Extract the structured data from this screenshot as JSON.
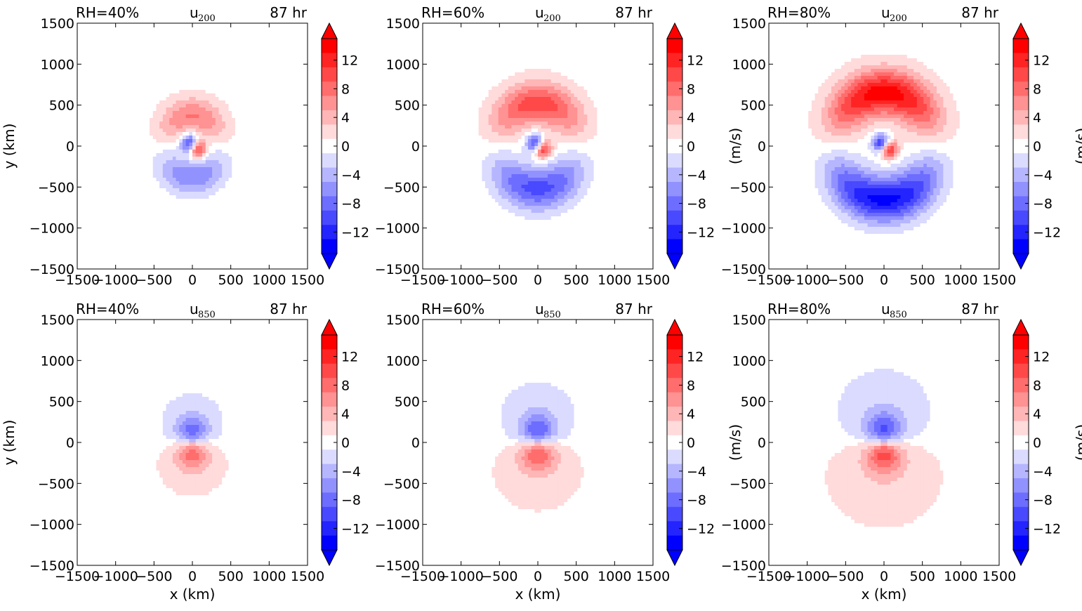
{
  "chart_data": [
    {
      "type": "heatmap",
      "panel": "u200-rh40",
      "title_left": "RH=40%",
      "title_center": "u",
      "title_center_sub": "200",
      "title_right": "87 hr",
      "xlabel": "",
      "ylabel": "y (km)",
      "colorbar_label": "",
      "xlim": [
        -1500,
        1500
      ],
      "ylim": [
        -1500,
        1500
      ],
      "xticks": [
        "−1500",
        "−1000",
        "−500",
        "0",
        "500",
        "1000",
        "1500"
      ],
      "yticks": [
        "1500",
        "1000",
        "500",
        "0",
        "−500",
        "−1000",
        "−1500"
      ],
      "field": {
        "kind": "upper",
        "background": 0.5,
        "ring_amp": 7,
        "ring_radius": 370,
        "ring_width": 220,
        "ring_extent": 720,
        "core_amp": 15,
        "core_radius": 110,
        "core_offset": 75,
        "core_width": 80
      }
    },
    {
      "type": "heatmap",
      "panel": "u200-rh60",
      "title_left": "RH=60%",
      "title_center": "u",
      "title_center_sub": "200",
      "title_right": "87 hr",
      "xlabel": "",
      "ylabel": "",
      "colorbar_label": "(m/s)",
      "xlim": [
        -1500,
        1500
      ],
      "ylim": [
        -1500,
        1500
      ],
      "xticks": [
        "−1500",
        "−1000",
        "−500",
        "0",
        "500",
        "1000",
        "1500"
      ],
      "yticks": [
        "1500",
        "1000",
        "500",
        "0",
        "−500",
        "−1000",
        "−1500"
      ],
      "field": {
        "kind": "upper",
        "background": 0.6,
        "ring_amp": 10,
        "ring_radius": 520,
        "ring_width": 260,
        "ring_extent": 850,
        "core_amp": 15,
        "core_radius": 110,
        "core_offset": 75,
        "core_width": 80
      }
    },
    {
      "type": "heatmap",
      "panel": "u200-rh80",
      "title_left": "RH=80%",
      "title_center": "u",
      "title_center_sub": "200",
      "title_right": "87 hr",
      "xlabel": "",
      "ylabel": "",
      "colorbar_label": "(m/s)",
      "xlim": [
        -1500,
        1500
      ],
      "ylim": [
        -1500,
        1500
      ],
      "xticks": [
        "−1500",
        "−1000",
        "−500",
        "0",
        "500",
        "1000",
        "1500"
      ],
      "yticks": [
        "1500",
        "1000",
        "500",
        "0",
        "−500",
        "−1000",
        "−1500"
      ],
      "field": {
        "kind": "upper",
        "background": 0.7,
        "ring_amp": 14,
        "ring_radius": 650,
        "ring_width": 280,
        "ring_extent": 1000,
        "core_amp": 16,
        "core_radius": 110,
        "core_offset": 75,
        "core_width": 80
      }
    },
    {
      "type": "heatmap",
      "panel": "u850-rh40",
      "title_left": "RH=40%",
      "title_center": "u",
      "title_center_sub": "850",
      "title_right": "87 hr",
      "xlabel": "x (km)",
      "ylabel": "y (km)",
      "colorbar_label": "",
      "xlim": [
        -1500,
        1500
      ],
      "ylim": [
        -1500,
        1500
      ],
      "xticks": [
        "−1500",
        "−1000",
        "−500",
        "0",
        "500",
        "1000",
        "1500"
      ],
      "yticks": [
        "1500",
        "1000",
        "500",
        "0",
        "−500",
        "−1000",
        "−1500"
      ],
      "field": {
        "kind": "lower",
        "background": 0.5,
        "vortex_amp": 16,
        "vortex_scale": 280,
        "envelope_amp": 2.5,
        "envelope_scale": 520
      }
    },
    {
      "type": "heatmap",
      "panel": "u850-rh60",
      "title_left": "RH=60%",
      "title_center": "u",
      "title_center_sub": "850",
      "title_right": "87 hr",
      "xlabel": "x (km)",
      "ylabel": "",
      "colorbar_label": "(m/s)",
      "xlim": [
        -1500,
        1500
      ],
      "ylim": [
        -1500,
        1500
      ],
      "xticks": [
        "−1500",
        "−1000",
        "−500",
        "0",
        "500",
        "1000",
        "1500"
      ],
      "yticks": [
        "1500",
        "1000",
        "500",
        "0",
        "−500",
        "−1000",
        "−1500"
      ],
      "field": {
        "kind": "lower",
        "background": 0.6,
        "vortex_amp": 17,
        "vortex_scale": 300,
        "envelope_amp": 2.8,
        "envelope_scale": 600
      }
    },
    {
      "type": "heatmap",
      "panel": "u850-rh80",
      "title_left": "RH=80%",
      "title_center": "u",
      "title_center_sub": "850",
      "title_right": "87 hr",
      "xlabel": "x (km)",
      "ylabel": "",
      "colorbar_label": "(m/s)",
      "xlim": [
        -1500,
        1500
      ],
      "ylim": [
        -1500,
        1500
      ],
      "xticks": [
        "−1500",
        "−1000",
        "−500",
        "0",
        "500",
        "1000",
        "1500"
      ],
      "yticks": [
        "1500",
        "1000",
        "500",
        "0",
        "−500",
        "−1000",
        "−1500"
      ],
      "field": {
        "kind": "lower",
        "background": 0.7,
        "vortex_amp": 18,
        "vortex_scale": 310,
        "envelope_amp": 3.2,
        "envelope_scale": 680
      }
    }
  ],
  "colorbar": {
    "range": [
      -15,
      15
    ],
    "ticks": [
      "12",
      "8",
      "4",
      "0",
      "−4",
      "−8",
      "−12"
    ],
    "tick_values": [
      12,
      8,
      4,
      0,
      -4,
      -8,
      -12
    ],
    "extend": "both",
    "colors": {
      "negative": "#0000ff",
      "zero": "#ffffff",
      "positive": "#ff0000"
    }
  }
}
